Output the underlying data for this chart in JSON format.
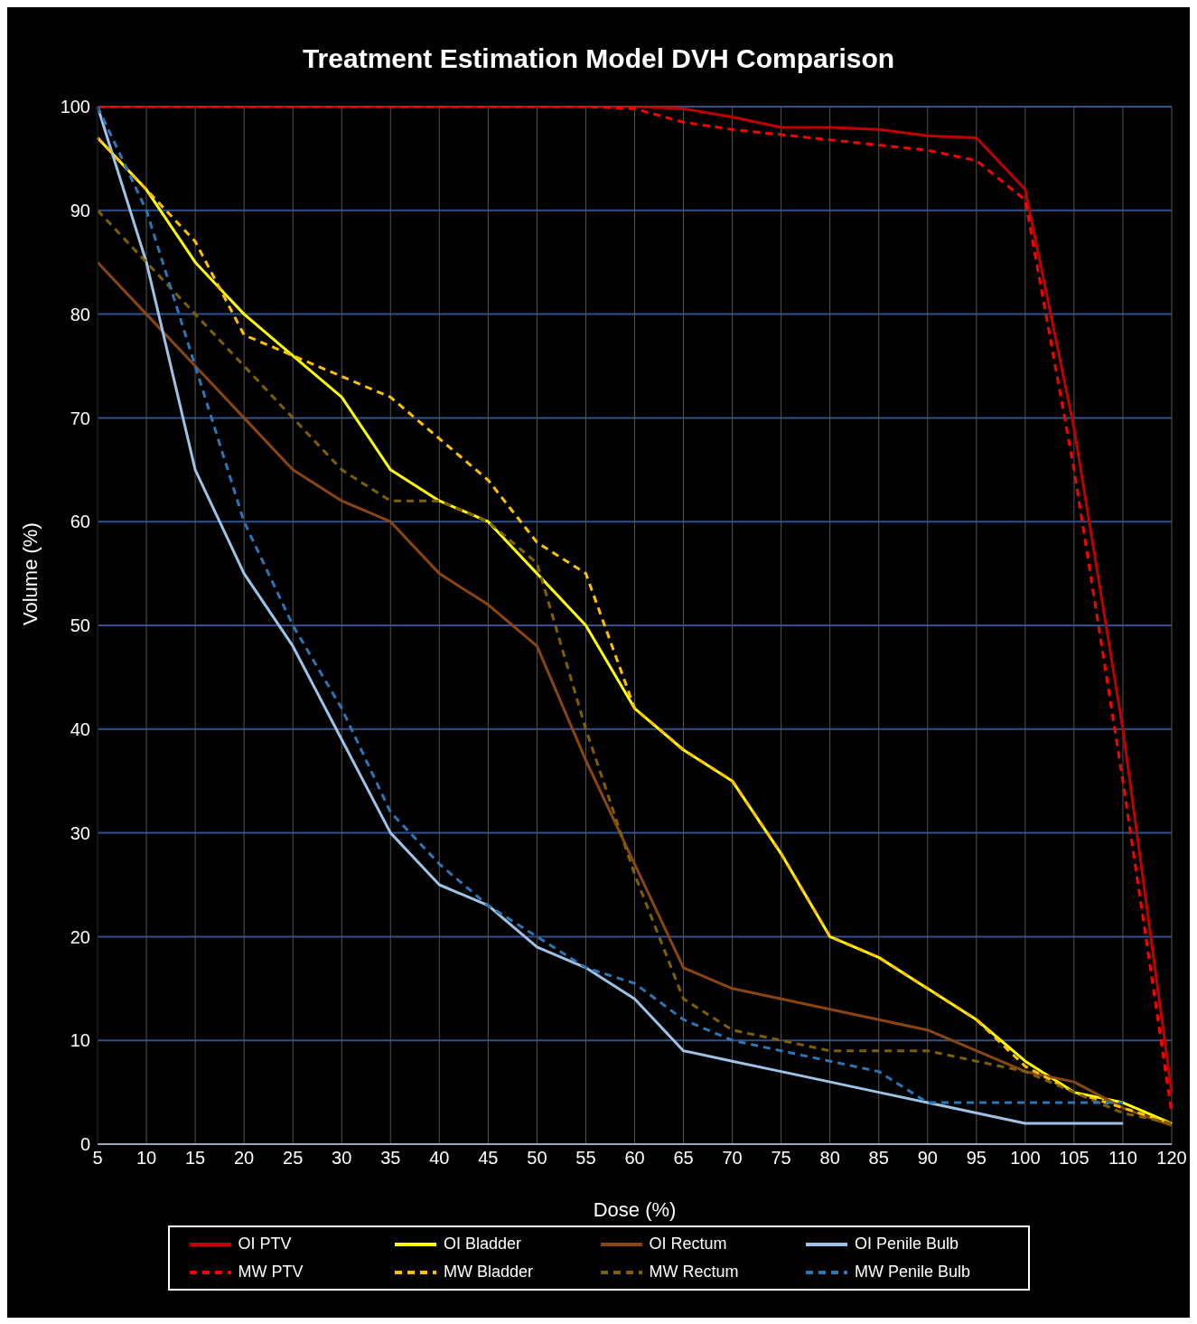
{
  "chart_data": {
    "type": "line",
    "title": "Treatment Estimation Model DVH Comparison",
    "xlabel": "Dose (%)",
    "ylabel": "Volume (%)",
    "categories": [
      "5",
      "10",
      "15",
      "20",
      "25",
      "30",
      "35",
      "40",
      "45",
      "50",
      "55",
      "60",
      "65",
      "70",
      "75",
      "80",
      "85",
      "90",
      "95",
      "100",
      "105",
      "110",
      "120"
    ],
    "ylim": [
      0,
      100
    ],
    "yticks": [
      0,
      10,
      20,
      30,
      40,
      50,
      60,
      70,
      80,
      90,
      100
    ],
    "grid": true,
    "legend": "bottom",
    "marker": "none",
    "series": [
      {
        "name": "OI PTV",
        "color": "#c00000",
        "line_style": "solid",
        "values": [
          100,
          100,
          100,
          100,
          100,
          100,
          100,
          100,
          100,
          100,
          100,
          100,
          99.8,
          99,
          98,
          98,
          97.8,
          97.2,
          97,
          92,
          69,
          40,
          5
        ]
      },
      {
        "name": "OI Bladder",
        "color": "#ffff00",
        "line_style": "solid",
        "values": [
          97,
          92,
          85,
          80,
          76,
          72,
          65,
          62,
          60,
          55,
          50,
          42,
          38,
          35,
          28,
          20,
          18,
          15,
          12,
          8,
          5,
          4,
          2
        ]
      },
      {
        "name": "OI Rectum",
        "color": "#8b4513",
        "line_style": "solid",
        "values": [
          85,
          80,
          75,
          70,
          65,
          62,
          60,
          55,
          52,
          48,
          37,
          27,
          17,
          15,
          14,
          13,
          12,
          11,
          9,
          7,
          6,
          3.5,
          1.8
        ]
      },
      {
        "name": "OI Penile Bulb",
        "color": "#9dc3e6",
        "line_style": "solid",
        "values": [
          100,
          85,
          65,
          55,
          48,
          39,
          30,
          25,
          23,
          19,
          17,
          14,
          9,
          8,
          7,
          6,
          5,
          4,
          3,
          2,
          2,
          2,
          null
        ]
      },
      {
        "name": "MW PTV",
        "color": "#ff0000",
        "line_style": "dashed",
        "values": [
          100,
          100,
          100,
          100,
          100,
          100,
          100,
          100,
          100,
          100,
          100,
          99.8,
          98.5,
          97.8,
          97.3,
          96.8,
          96.3,
          95.8,
          94.8,
          91,
          65,
          35,
          3
        ]
      },
      {
        "name": "MW Bladder",
        "color": "#ffc000",
        "line_style": "dashed",
        "values": [
          97,
          92,
          87,
          78,
          76,
          74,
          72,
          68,
          64,
          58,
          55,
          42,
          38,
          35,
          28,
          20,
          18,
          15,
          12,
          7.5,
          5,
          3.5,
          2
        ]
      },
      {
        "name": "MW Rectum",
        "color": "#7f6000",
        "line_style": "dashed",
        "values": [
          90,
          85,
          80,
          75,
          70,
          65,
          62,
          62,
          60,
          56,
          40,
          26,
          14,
          11,
          10,
          9,
          9,
          9,
          8,
          7,
          5,
          3,
          2
        ]
      },
      {
        "name": "MW Penile Bulb",
        "color": "#2e75b6",
        "line_style": "dashed",
        "values": [
          100,
          90,
          75,
          60,
          50,
          42,
          32,
          27,
          23,
          20,
          17,
          15.5,
          12,
          10,
          9,
          8,
          7,
          4,
          4,
          4,
          4,
          4,
          null
        ]
      }
    ]
  }
}
